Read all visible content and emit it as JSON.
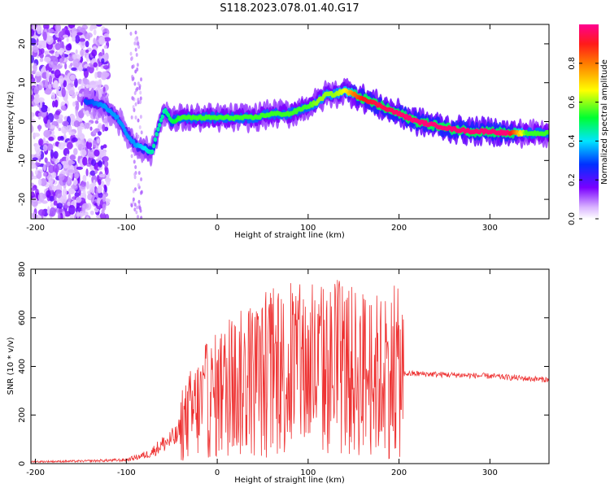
{
  "title": "S118.2023.078.01.40.G17",
  "chart_data": [
    {
      "type": "heatmap",
      "xlabel": "Height of straight line (km)",
      "ylabel": "Frequency (Hz)",
      "xlim": [
        -205,
        365
      ],
      "ylim": [
        -25,
        25
      ],
      "x_ticks": [
        -200,
        -100,
        0,
        100,
        200,
        300
      ],
      "y_ticks": [
        -20,
        -10,
        0,
        10,
        20
      ],
      "colorbar": {
        "label": "Normalized spectral amplitude",
        "range": [
          0,
          1
        ],
        "ticks": [
          0.0,
          0.2,
          0.4,
          0.6,
          0.8
        ],
        "colormap": [
          "#ffffff",
          "#7a00ff",
          "#0033ff",
          "#00e5ff",
          "#00ff33",
          "#ffff00",
          "#ff2020",
          "#ff0090"
        ]
      },
      "ridge": {
        "x": [
          -140,
          -125,
          -110,
          -100,
          -90,
          -80,
          -72,
          -65,
          -58,
          -50,
          -40,
          -20,
          0,
          20,
          40,
          60,
          80,
          100,
          110,
          120,
          130,
          140,
          150,
          160,
          180,
          200,
          220,
          240,
          260,
          280,
          300,
          320,
          340,
          360
        ],
        "y": [
          5,
          4,
          1,
          -3,
          -6,
          -7,
          -8,
          -2,
          3,
          0,
          1,
          1,
          1,
          1,
          1,
          2,
          2,
          4,
          5,
          7,
          7,
          8,
          7,
          6,
          4,
          2,
          0,
          -1,
          -2,
          -2.5,
          -2.5,
          -3,
          -3,
          -3
        ],
        "amplitude": [
          0.3,
          0.35,
          0.35,
          0.35,
          0.35,
          0.4,
          0.45,
          0.45,
          0.45,
          0.5,
          0.55,
          0.55,
          0.55,
          0.55,
          0.55,
          0.55,
          0.55,
          0.55,
          0.6,
          0.6,
          0.6,
          0.65,
          0.8,
          0.9,
          0.95,
          0.97,
          0.98,
          0.98,
          0.98,
          0.98,
          0.98,
          0.98,
          0.55,
          0.55
        ]
      }
    },
    {
      "type": "line",
      "xlabel": "Height of straight line (km)",
      "ylabel": "SNR (10 * v/v)",
      "xlim": [
        -205,
        365
      ],
      "ylim": [
        0,
        800
      ],
      "x_ticks": [
        -200,
        -100,
        0,
        100,
        200,
        300
      ],
      "y_ticks": [
        0,
        200,
        400,
        600,
        800
      ],
      "color": "#ee3333",
      "series": [
        {
          "x": [
            -205,
            -150,
            -100,
            -75,
            -60,
            -45,
            -30,
            -15,
            0,
            20,
            40,
            60,
            80,
            100,
            120,
            140,
            160,
            180,
            200,
            210,
            220,
            260,
            300,
            340,
            365
          ],
          "y": [
            8,
            10,
            15,
            40,
            80,
            110,
            200,
            250,
            280,
            320,
            340,
            360,
            380,
            380,
            380,
            380,
            370,
            360,
            370,
            370,
            370,
            365,
            360,
            350,
            345
          ]
        }
      ]
    }
  ]
}
